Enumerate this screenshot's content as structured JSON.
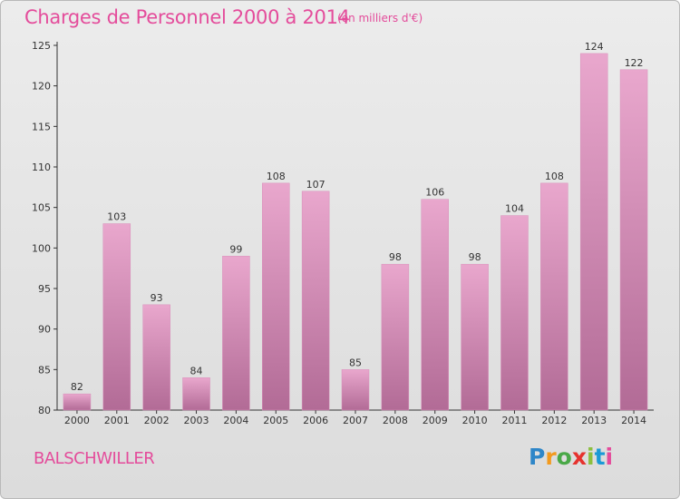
{
  "header": {
    "title": "Charges de Personnel 2000 à 2014",
    "subtitle": "(en milliers d'€)"
  },
  "footer": {
    "commune": "BALSCHWILLER",
    "logo_text": "Proxiti"
  },
  "colors": {
    "bar_top": "#e9a7cd",
    "bar_bottom": "#b26b96",
    "title": "#e44c9b"
  },
  "chart_data": {
    "type": "bar",
    "title": "Charges de Personnel 2000 à 2014",
    "subtitle": "(en milliers d'€)",
    "xlabel": "",
    "ylabel": "",
    "categories": [
      "2000",
      "2001",
      "2002",
      "2003",
      "2004",
      "2005",
      "2006",
      "2007",
      "2008",
      "2009",
      "2010",
      "2011",
      "2012",
      "2013",
      "2014"
    ],
    "values": [
      82,
      103,
      93,
      84,
      99,
      108,
      107,
      85,
      98,
      106,
      98,
      104,
      108,
      124,
      122
    ],
    "ylim": [
      80,
      125
    ],
    "yticks": [
      80,
      85,
      90,
      95,
      100,
      105,
      110,
      115,
      120,
      125
    ],
    "grid": false,
    "legend": "none"
  }
}
